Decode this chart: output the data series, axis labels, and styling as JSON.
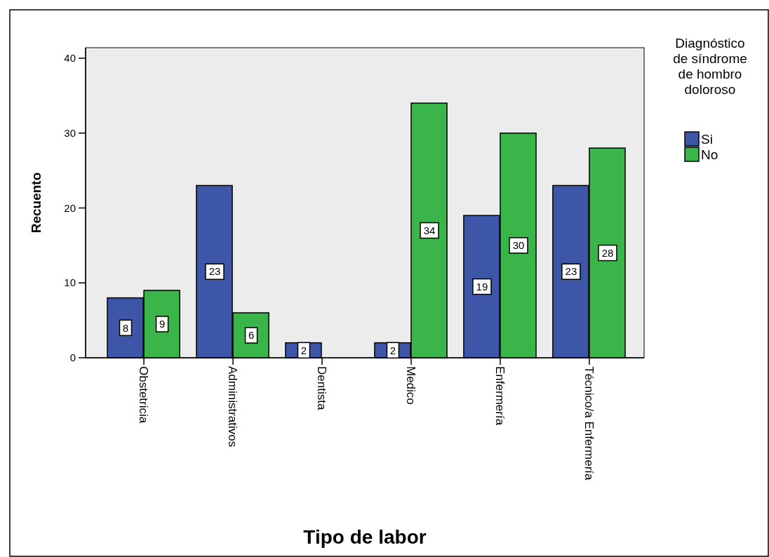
{
  "chart_data": {
    "type": "bar",
    "xlabel": "Tipo de labor",
    "ylabel": "Recuento",
    "legend_title": "Diagnóstico de síndrome de hombro doloroso",
    "categories": [
      "Obstetricia",
      "Administrativos",
      "Dentista",
      "Medico",
      "Enfermería",
      "Técnico/a Enfermería"
    ],
    "series": [
      {
        "name": "Si",
        "color": "#3d56a8",
        "values": [
          8,
          23,
          2,
          2,
          19,
          23
        ]
      },
      {
        "name": "No",
        "color": "#3ab54a",
        "values": [
          9,
          6,
          null,
          34,
          30,
          28
        ]
      }
    ],
    "ylim": [
      0,
      41.4
    ],
    "yticks": [
      0,
      10,
      20,
      30,
      40
    ],
    "data_labels": true,
    "legend": "right",
    "grid": false
  }
}
